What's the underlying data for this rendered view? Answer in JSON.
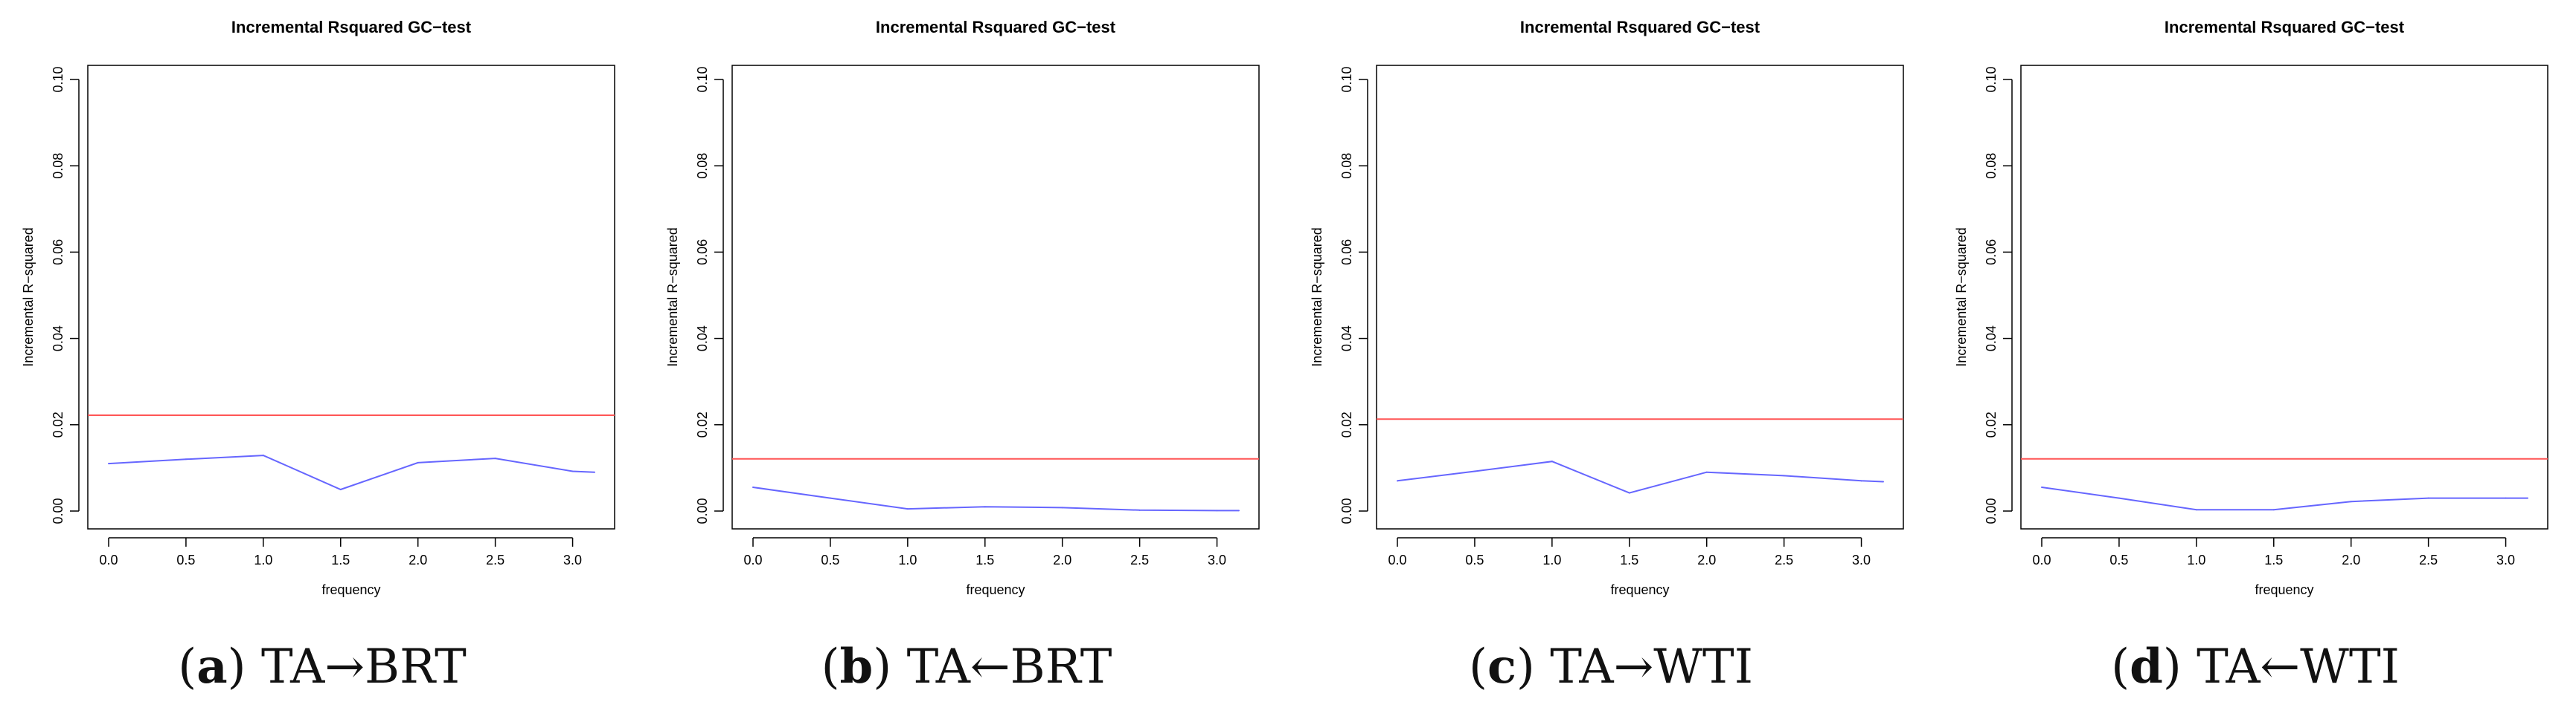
{
  "figure": {
    "captions": [
      {
        "label": "a",
        "text": "TA→BRT"
      },
      {
        "label": "b",
        "text": "TA←BRT"
      },
      {
        "label": "c",
        "text": "TA→WTI"
      },
      {
        "label": "d",
        "text": "TA←WTI"
      }
    ]
  },
  "colors": {
    "series": "#6666ff",
    "threshold": "#ff5555",
    "axis": "#000000"
  },
  "chart_data": [
    {
      "type": "line",
      "title": "Incremental Rsquared GC−test",
      "xlabel": "frequency",
      "ylabel": "Incremental R−squared",
      "xlim": [
        0,
        3.1416
      ],
      "ylim": [
        0,
        0.1
      ],
      "xticks": [
        "0.0",
        "0.5",
        "1.0",
        "1.5",
        "2.0",
        "2.5",
        "3.0"
      ],
      "yticks": [
        "0.00",
        "0.02",
        "0.04",
        "0.06",
        "0.08",
        "0.10"
      ],
      "series": [
        {
          "name": "Incremental R-squared",
          "color": "#6666ff",
          "x": [
            0.0,
            0.5,
            1.0,
            1.5,
            2.0,
            2.5,
            3.0,
            3.1416
          ],
          "values": [
            0.011,
            0.012,
            0.0129,
            0.005,
            0.0112,
            0.0122,
            0.0092,
            0.009
          ]
        }
      ],
      "threshold": {
        "value": 0.0222,
        "color": "#ff5555"
      }
    },
    {
      "type": "line",
      "title": "Incremental Rsquared GC−test",
      "xlabel": "frequency",
      "ylabel": "Incremental R−squared",
      "xlim": [
        0,
        3.1416
      ],
      "ylim": [
        0,
        0.1
      ],
      "xticks": [
        "0.0",
        "0.5",
        "1.0",
        "1.5",
        "2.0",
        "2.5",
        "3.0"
      ],
      "yticks": [
        "0.00",
        "0.02",
        "0.04",
        "0.06",
        "0.08",
        "0.10"
      ],
      "series": [
        {
          "name": "Incremental R-squared",
          "color": "#6666ff",
          "x": [
            0.0,
            0.5,
            1.0,
            1.5,
            2.0,
            2.5,
            3.0,
            3.1416
          ],
          "values": [
            0.0055,
            0.003,
            0.0005,
            0.001,
            0.0008,
            0.0002,
            0.0001,
            0.0001
          ]
        }
      ],
      "threshold": {
        "value": 0.0121,
        "color": "#ff5555"
      }
    },
    {
      "type": "line",
      "title": "Incremental Rsquared GC−test",
      "xlabel": "frequency",
      "ylabel": "Incremental R−squared",
      "xlim": [
        0,
        3.1416
      ],
      "ylim": [
        0,
        0.1
      ],
      "xticks": [
        "0.0",
        "0.5",
        "1.0",
        "1.5",
        "2.0",
        "2.5",
        "3.0"
      ],
      "yticks": [
        "0.00",
        "0.02",
        "0.04",
        "0.06",
        "0.08",
        "0.10"
      ],
      "series": [
        {
          "name": "Incremental R-squared",
          "color": "#6666ff",
          "x": [
            0.0,
            0.5,
            1.0,
            1.5,
            2.0,
            2.5,
            3.0,
            3.1416
          ],
          "values": [
            0.007,
            0.0092,
            0.0115,
            0.0042,
            0.009,
            0.0082,
            0.007,
            0.0068
          ]
        }
      ],
      "threshold": {
        "value": 0.0213,
        "color": "#ff5555"
      }
    },
    {
      "type": "line",
      "title": "Incremental Rsquared GC−test",
      "xlabel": "frequency",
      "ylabel": "Incremental R−squared",
      "xlim": [
        0,
        3.1416
      ],
      "ylim": [
        0,
        0.1
      ],
      "xticks": [
        "0.0",
        "0.5",
        "1.0",
        "1.5",
        "2.0",
        "2.5",
        "3.0"
      ],
      "yticks": [
        "0.00",
        "0.02",
        "0.04",
        "0.06",
        "0.08",
        "0.10"
      ],
      "series": [
        {
          "name": "Incremental R-squared",
          "color": "#6666ff",
          "x": [
            0.0,
            0.5,
            1.0,
            1.5,
            2.0,
            2.5,
            3.0,
            3.1416
          ],
          "values": [
            0.0055,
            0.003,
            0.0003,
            0.0003,
            0.0022,
            0.003,
            0.003,
            0.003
          ]
        }
      ],
      "threshold": {
        "value": 0.0121,
        "color": "#ff5555"
      }
    }
  ]
}
